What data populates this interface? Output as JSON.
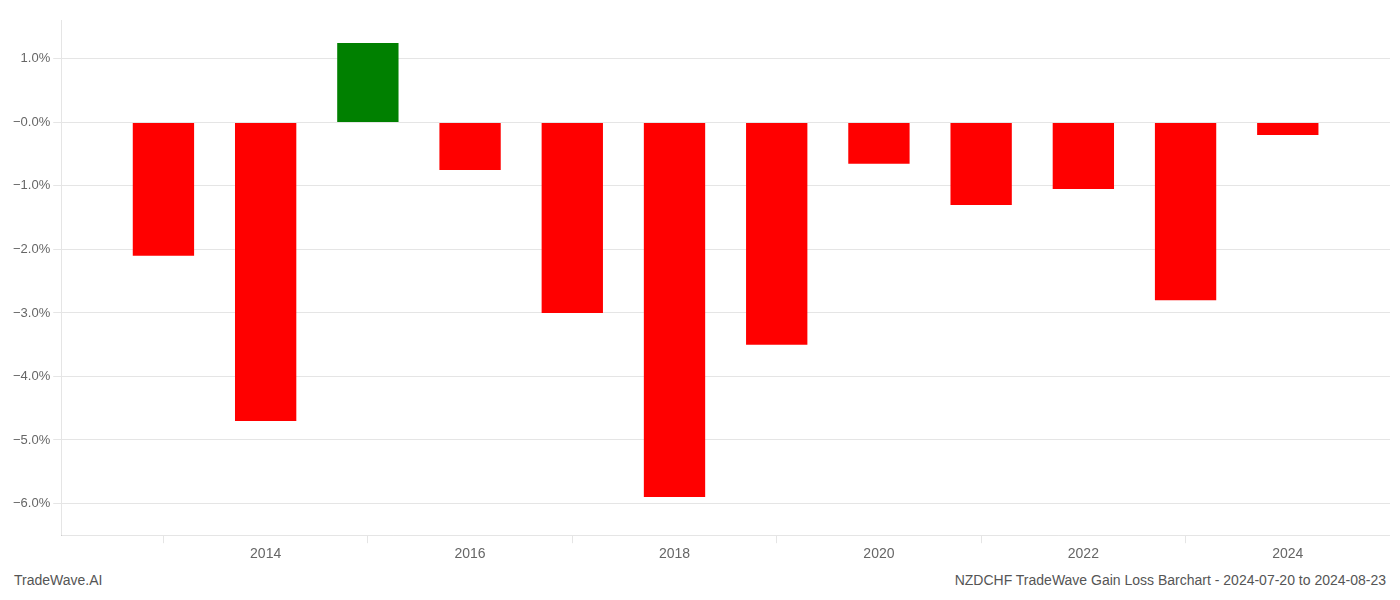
{
  "chart_data": {
    "type": "bar",
    "x": [
      2013,
      2014,
      2015,
      2016,
      2017,
      2018,
      2019,
      2020,
      2021,
      2022,
      2023,
      2024
    ],
    "values": [
      -2.1,
      -4.7,
      1.25,
      -0.75,
      -3.0,
      -5.9,
      -3.5,
      -0.65,
      -1.3,
      -1.05,
      -2.8,
      -0.2
    ],
    "colors": [
      "red",
      "red",
      "green",
      "red",
      "red",
      "red",
      "red",
      "red",
      "red",
      "red",
      "red",
      "red"
    ],
    "xlim": [
      2012,
      2025
    ],
    "xticks": [
      2014,
      2016,
      2018,
      2020,
      2022,
      2024
    ],
    "ylim": [
      -6.5,
      1.6
    ],
    "yticks": [
      {
        "value": 1.0,
        "label": "1.0%"
      },
      {
        "value": 0.0,
        "label": "−0.0%"
      },
      {
        "value": -1.0,
        "label": "−1.0%"
      },
      {
        "value": -2.0,
        "label": "−2.0%"
      },
      {
        "value": -3.0,
        "label": "−3.0%"
      },
      {
        "value": -4.0,
        "label": "−4.0%"
      },
      {
        "value": -5.0,
        "label": "−5.0%"
      },
      {
        "value": -6.0,
        "label": "−6.0%"
      }
    ],
    "grid": true,
    "annotations": [
      "TradeWave.AI",
      "NZDCHF TradeWave Gain Loss Barchart - 2024-07-20 to 2024-08-23"
    ]
  }
}
